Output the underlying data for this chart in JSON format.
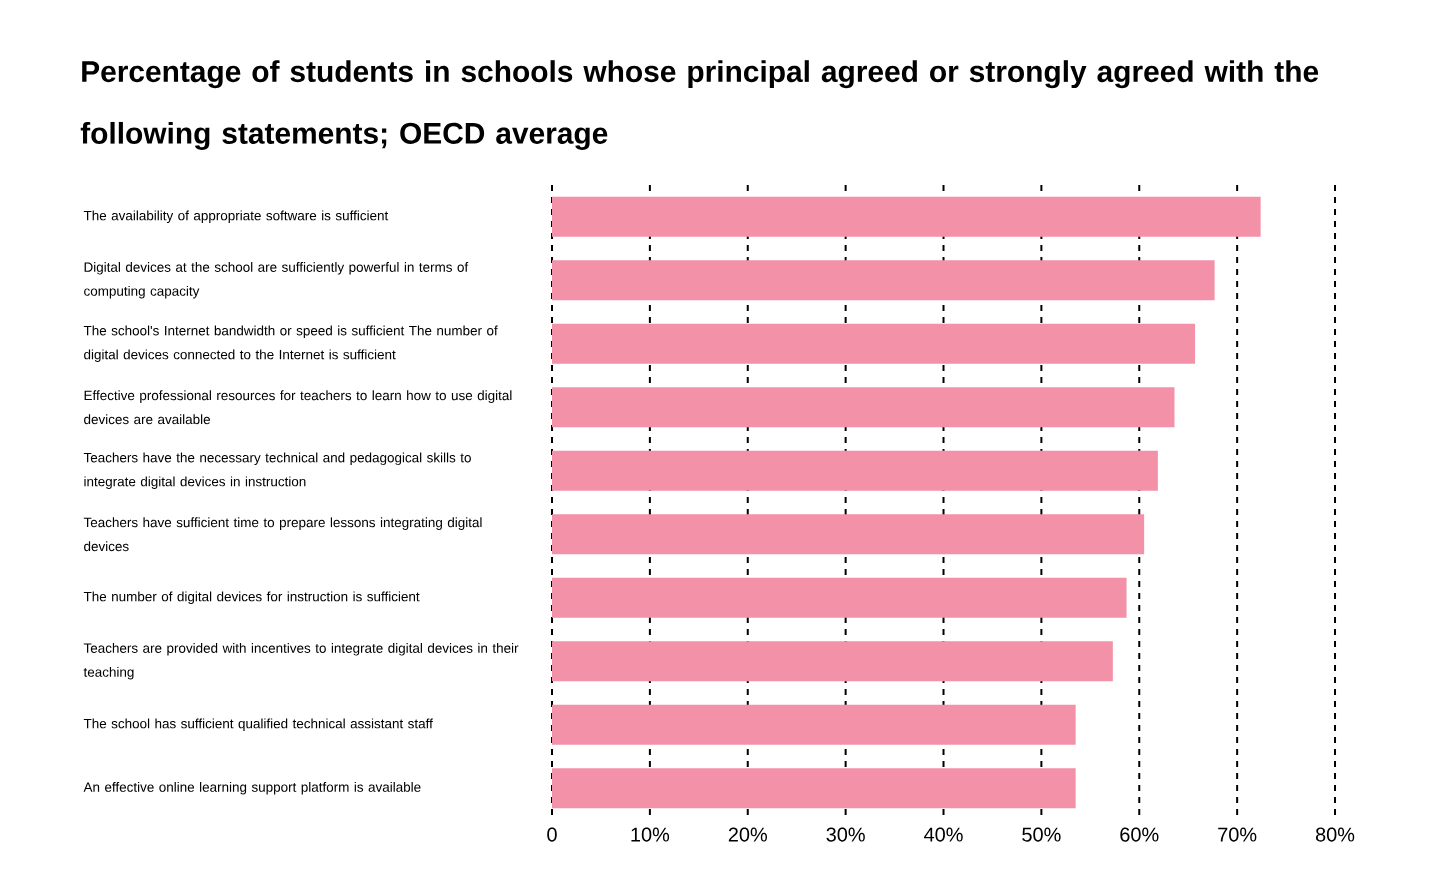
{
  "chart_data": {
    "type": "bar",
    "orientation": "horizontal",
    "title": "Percentage of students in schools whose principal agreed or strongly agreed with the following statements; OECD average",
    "categories": [
      "The availability of appropriate software is sufficient",
      "Digital devices at the school are sufficiently powerful in terms of computing capacity",
      "The school's Internet bandwidth or speed is sufficient The number of digital devices connected to the Internet is sufficient",
      "Effective professional resources for teachers to learn how to use digital devices are available",
      "Teachers have the necessary technical and pedagogical skills to integrate digital devices in instruction",
      "Teachers have sufficient time to prepare lessons integrating digital devices",
      "The number of digital devices for instruction is sufficient",
      "Teachers are provided with incentives to integrate digital devices in their teaching",
      "The school has sufficient qualified technical assistant staff",
      "An effective online learning support platform is available"
    ],
    "values": [
      72.4,
      67.7,
      65.7,
      63.6,
      61.9,
      60.5,
      58.7,
      57.3,
      53.5,
      53.5
    ],
    "color": "#f291a8",
    "xlim": [
      0,
      80
    ],
    "xticks": [
      0,
      {
        "value": 10,
        "label": "10%"
      },
      {
        "value": 20,
        "label": "20%"
      },
      {
        "value": 30,
        "label": "30%"
      },
      {
        "value": 40,
        "label": "40%"
      },
      {
        "value": 50,
        "label": "50%"
      },
      {
        "value": 60,
        "label": "60%"
      },
      {
        "value": 70,
        "label": "70%"
      },
      {
        "value": 80,
        "label": "80%"
      }
    ],
    "grid": "x"
  }
}
